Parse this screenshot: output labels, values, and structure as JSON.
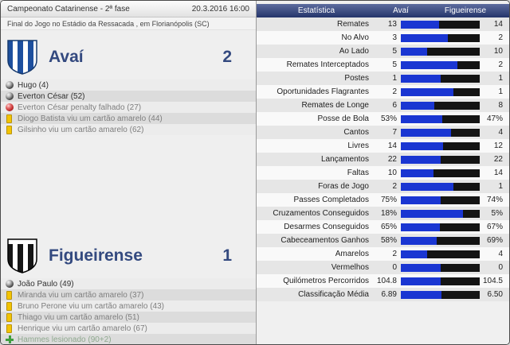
{
  "colors": {
    "home_bar": "#1a36d2",
    "away_bar": "#141414"
  },
  "left": {
    "competition": "Campeonato Catarinense - 2ª fase",
    "datetime": "20.3.2016 16:00",
    "subtitle": "Final do Jogo no Estádio da Ressacada , em Florianópolis (SC)",
    "home": {
      "name": "Avaí",
      "score": "2",
      "events": [
        {
          "icon": "goal",
          "text": "Hugo (4)"
        },
        {
          "icon": "goal",
          "text": "Everton César (52)"
        },
        {
          "icon": "penalty-missed",
          "text": "Everton César penalty falhado (27)"
        },
        {
          "icon": "yellow-card",
          "text": "Diogo Batista viu um cartão amarelo (44)"
        },
        {
          "icon": "yellow-card",
          "text": "Gilsinho viu um cartão amarelo (62)"
        }
      ]
    },
    "away": {
      "name": "Figueirense",
      "score": "1",
      "events": [
        {
          "icon": "goal",
          "text": "João Paulo (49)"
        },
        {
          "icon": "yellow-card",
          "text": "Miranda viu um cartão amarelo (37)"
        },
        {
          "icon": "yellow-card",
          "text": "Bruno Perone viu um cartão amarelo (43)"
        },
        {
          "icon": "yellow-card",
          "text": "Thiago viu um cartão amarelo (51)"
        },
        {
          "icon": "yellow-card",
          "text": "Henrique viu um cartão amarelo (67)"
        },
        {
          "icon": "injury",
          "text": "Hammes lesionado (90+2)"
        }
      ]
    }
  },
  "stats": {
    "headers": {
      "stat": "Estatística",
      "home": "Avaí",
      "away": "Figueirense"
    },
    "rows": [
      {
        "label": "Remates",
        "home": "13",
        "away": "14"
      },
      {
        "label": "No Alvo",
        "home": "3",
        "away": "2"
      },
      {
        "label": "Ao Lado",
        "home": "5",
        "away": "10"
      },
      {
        "label": "Remates Interceptados",
        "home": "5",
        "away": "2"
      },
      {
        "label": "Postes",
        "home": "1",
        "away": "1"
      },
      {
        "label": "Oportunidades Flagrantes",
        "home": "2",
        "away": "1"
      },
      {
        "label": "Remates de Longe",
        "home": "6",
        "away": "8"
      },
      {
        "label": "Posse de Bola",
        "home": "53%",
        "away": "47%"
      },
      {
        "label": "Cantos",
        "home": "7",
        "away": "4"
      },
      {
        "label": "Livres",
        "home": "14",
        "away": "12"
      },
      {
        "label": "Lançamentos",
        "home": "22",
        "away": "22"
      },
      {
        "label": "Faltas",
        "home": "10",
        "away": "14"
      },
      {
        "label": "Foras de Jogo",
        "home": "2",
        "away": "1"
      },
      {
        "label": "Passes Completados",
        "home": "75%",
        "away": "74%"
      },
      {
        "label": "Cruzamentos Conseguidos",
        "home": "18%",
        "away": "5%"
      },
      {
        "label": "Desarmes Conseguidos",
        "home": "65%",
        "away": "67%"
      },
      {
        "label": "Cabeceamentos Ganhos",
        "home": "58%",
        "away": "69%"
      },
      {
        "label": "Amarelos",
        "home": "2",
        "away": "4"
      },
      {
        "label": "Vermelhos",
        "home": "0",
        "away": "0"
      },
      {
        "label": "Quilómetros Percorridos",
        "home": "104.8",
        "away": "104.5"
      },
      {
        "label": "Classificação Média",
        "home": "6.89",
        "away": "6.50"
      }
    ]
  }
}
